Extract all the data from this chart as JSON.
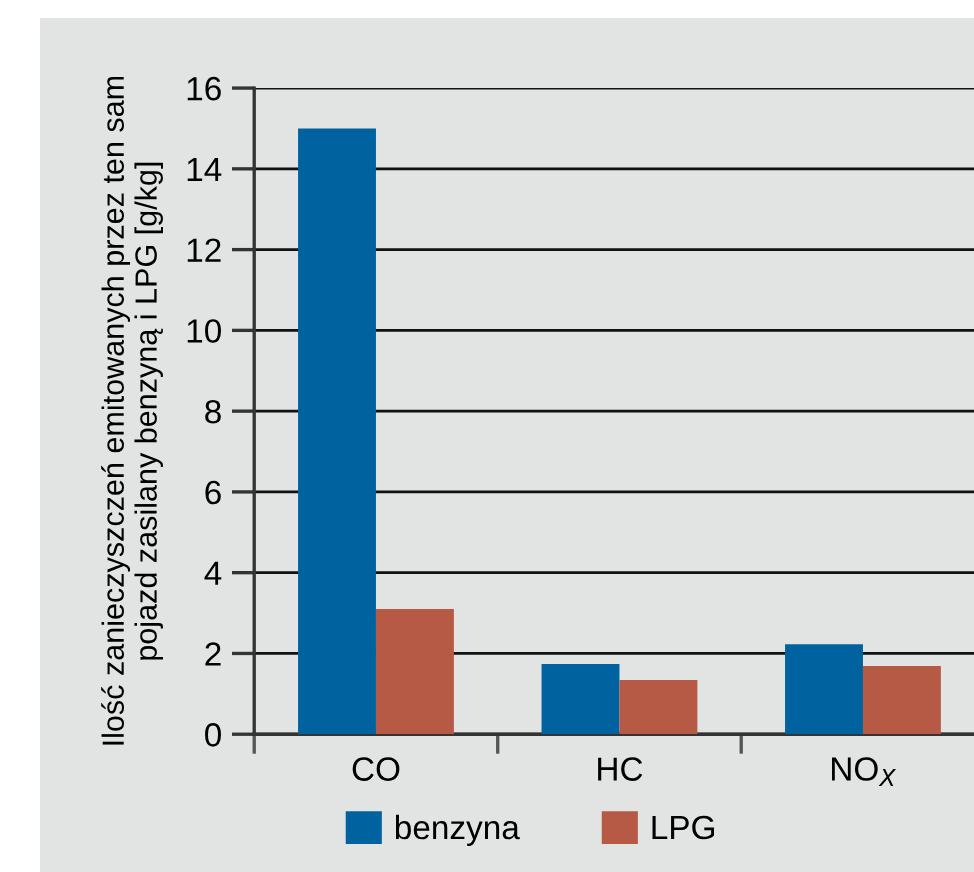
{
  "chart_data": {
    "type": "bar",
    "ylabel": "Ilość zanieczyszczeń emitowanych przez ten sam\npojazd zasilany benzyną i LPG [g/kg]",
    "categories": [
      "CO",
      "HC",
      "NO$_{X}$"
    ],
    "series": [
      {
        "name": "benzyna",
        "color": "#0063a0",
        "values": [
          15,
          1.74,
          2.23
        ]
      },
      {
        "name": "LPG",
        "color": "#b65a45",
        "values": [
          3.1,
          1.34,
          1.69
        ]
      }
    ],
    "ylim": [
      0,
      16
    ],
    "yticks": [
      0,
      2,
      4,
      6,
      8,
      10,
      12,
      14,
      16
    ],
    "grid": "y",
    "legend": "bottom"
  }
}
